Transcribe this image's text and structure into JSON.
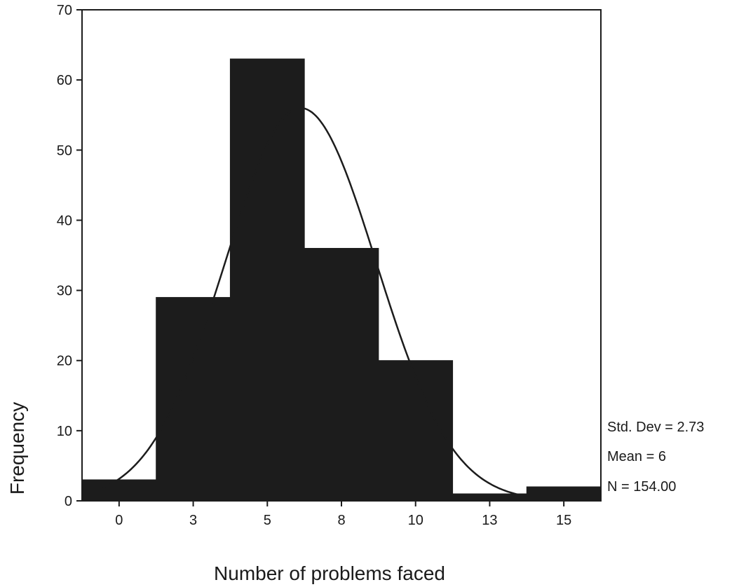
{
  "chart_data": {
    "type": "bar",
    "subtype": "histogram",
    "categories": [
      "0",
      "3",
      "5",
      "8",
      "10",
      "13",
      "15"
    ],
    "values": [
      3,
      29,
      63,
      36,
      20,
      1,
      2
    ],
    "xlabel": "Number of problems faced",
    "ylabel": "Frequency",
    "ylim": [
      0,
      70
    ],
    "yticks": [
      0,
      10,
      20,
      30,
      40,
      50,
      60,
      70
    ],
    "grid": false,
    "legend": "none",
    "normal_curve": {
      "mean": 6,
      "std_dev": 2.73,
      "n": 154
    },
    "stats": {
      "std_dev": "Std. Dev = 2.73",
      "mean": "Mean = 6",
      "n": "N = 154.00"
    },
    "colors": {
      "bar": "#1c1c1c",
      "curve": "#1c1c1c",
      "axis": "#1c1c1c"
    }
  }
}
